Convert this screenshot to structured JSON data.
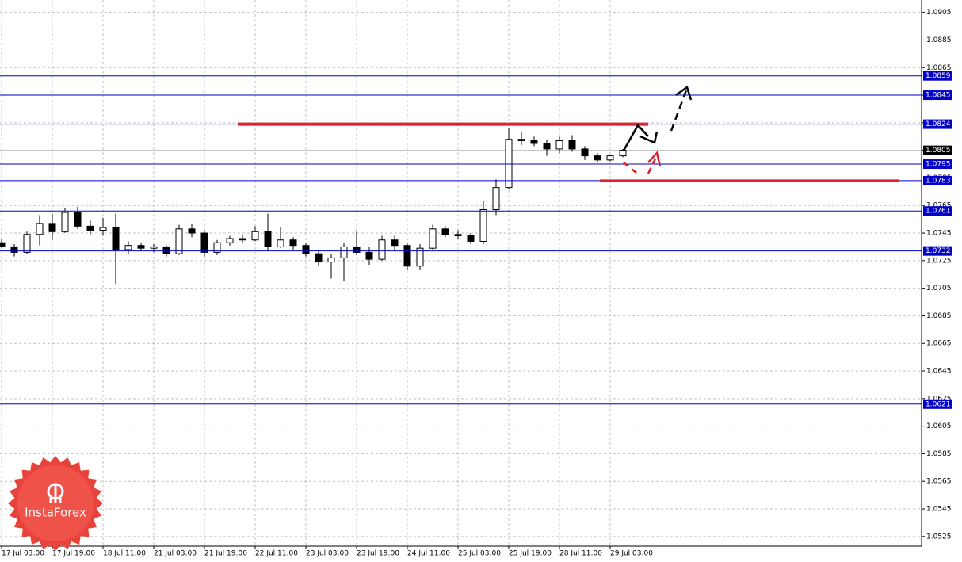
{
  "chart_data": {
    "type": "candlestick",
    "x": [
      0,
      4,
      8,
      12,
      16,
      20,
      24,
      28,
      32,
      36,
      40,
      44,
      48,
      52,
      56,
      60,
      64,
      68,
      72,
      76,
      80,
      84,
      88,
      92,
      96,
      100,
      104,
      108,
      112,
      116,
      120,
      124,
      128,
      132,
      136,
      140,
      144,
      148,
      152,
      156,
      160,
      164,
      168,
      172,
      176,
      180,
      184,
      188,
      192,
      196
    ],
    "open": [
      1.0738,
      1.0735,
      1.0731,
      1.0744,
      1.0752,
      1.0746,
      1.076,
      1.075,
      1.0747,
      1.0749,
      1.0733,
      1.0736,
      1.0734,
      1.0735,
      1.073,
      1.0748,
      1.0745,
      1.0731,
      1.0738,
      1.0741,
      1.074,
      1.0746,
      1.0735,
      1.074,
      1.0736,
      1.073,
      1.0724,
      1.0727,
      1.0735,
      1.0731,
      1.0726,
      1.074,
      1.0736,
      1.0721,
      1.0734,
      1.0748,
      1.0744,
      1.0743,
      1.0739,
      1.0762,
      1.0778,
      1.0813,
      1.0812,
      1.081,
      1.0806,
      1.0812,
      1.0806,
      1.0801,
      1.0798,
      1.0801
    ],
    "high": [
      1.0741,
      1.0737,
      1.0746,
      1.0758,
      1.0759,
      1.0763,
      1.0764,
      1.0754,
      1.0756,
      1.0759,
      1.0739,
      1.0738,
      1.0737,
      1.0736,
      1.0751,
      1.0752,
      1.0747,
      1.074,
      1.0743,
      1.0744,
      1.075,
      1.0759,
      1.0749,
      1.0742,
      1.0738,
      1.0733,
      1.073,
      1.0738,
      1.0746,
      1.0735,
      1.0743,
      1.0743,
      1.0738,
      1.0737,
      1.0751,
      1.075,
      1.0747,
      1.0745,
      1.0768,
      1.0784,
      1.0821,
      1.0818,
      1.0815,
      1.0813,
      1.0815,
      1.0816,
      1.0808,
      1.0803,
      1.0802,
      1.0806
    ],
    "low": [
      1.0734,
      1.0728,
      1.073,
      1.0736,
      1.074,
      1.0745,
      1.0748,
      1.0744,
      1.0743,
      1.0708,
      1.073,
      1.0732,
      1.0731,
      1.0728,
      1.0729,
      1.0742,
      1.0728,
      1.0729,
      1.0736,
      1.0738,
      1.0739,
      1.0732,
      1.0734,
      1.0733,
      1.0728,
      1.0721,
      1.0712,
      1.071,
      1.0729,
      1.0722,
      1.0725,
      1.0733,
      1.0718,
      1.0718,
      1.0733,
      1.0742,
      1.0741,
      1.0737,
      1.0737,
      1.0758,
      1.0777,
      1.0809,
      1.0808,
      1.0801,
      1.0803,
      1.0804,
      1.0798,
      1.0796,
      1.0797,
      1.08
    ],
    "close": [
      1.0735,
      1.0731,
      1.0744,
      1.0752,
      1.0746,
      1.076,
      1.075,
      1.0747,
      1.0749,
      1.0733,
      1.0736,
      1.0734,
      1.0735,
      1.073,
      1.0748,
      1.0745,
      1.0731,
      1.0738,
      1.0741,
      1.074,
      1.0746,
      1.0735,
      1.074,
      1.0736,
      1.073,
      1.0724,
      1.0727,
      1.0735,
      1.0731,
      1.0726,
      1.074,
      1.0736,
      1.0721,
      1.0734,
      1.0748,
      1.0744,
      1.0743,
      1.0739,
      1.0762,
      1.0778,
      1.0813,
      1.0812,
      1.081,
      1.0806,
      1.0812,
      1.0806,
      1.0801,
      1.0798,
      1.0801,
      1.0805
    ],
    "xlim": [
      -0.5,
      290.25
    ],
    "xticks": [
      {
        "value": 0,
        "label": "17 Jul 03:00"
      },
      {
        "value": 16,
        "label": "17 Jul 19:00"
      },
      {
        "value": 32,
        "label": "18 Jul 11:00"
      },
      {
        "value": 48,
        "label": "21 Jul 03:00"
      },
      {
        "value": 64,
        "label": "21 Jul 19:00"
      },
      {
        "value": 80,
        "label": "22 Jul 11:00"
      },
      {
        "value": 96,
        "label": "23 Jul 03:00"
      },
      {
        "value": 112,
        "label": "23 Jul 19:00"
      },
      {
        "value": 128,
        "label": "24 Jul 11:00"
      },
      {
        "value": 144,
        "label": "25 Jul 03:00"
      },
      {
        "value": 160,
        "label": "25 Jul 19:00"
      },
      {
        "value": 176,
        "label": "28 Jul 11:00"
      },
      {
        "value": 192,
        "label": "29 Jul 03:00"
      }
    ],
    "ylim": [
      1.0518,
      1.0914
    ],
    "yticks": [
      1.0905,
      1.0885,
      1.0865,
      1.0845,
      1.0825,
      1.0805,
      1.0785,
      1.0765,
      1.0745,
      1.0725,
      1.0705,
      1.0685,
      1.0665,
      1.0645,
      1.0625,
      1.0605,
      1.0585,
      1.0565,
      1.0545,
      1.0525
    ],
    "grid": true,
    "levels": [
      1.0859,
      1.0845,
      1.0824,
      1.0795,
      1.0783,
      1.0761,
      1.0732,
      1.0621
    ],
    "level_color": "#0000c8",
    "current_price": 1.0805,
    "red_lines": [
      {
        "value": 1.0824,
        "x": [
          74.5,
          204
        ]
      },
      {
        "value": 1.0783,
        "x": [
          188.75,
          283.25
        ]
      }
    ],
    "red_color": "#e02030",
    "logo": "InstaForex"
  }
}
